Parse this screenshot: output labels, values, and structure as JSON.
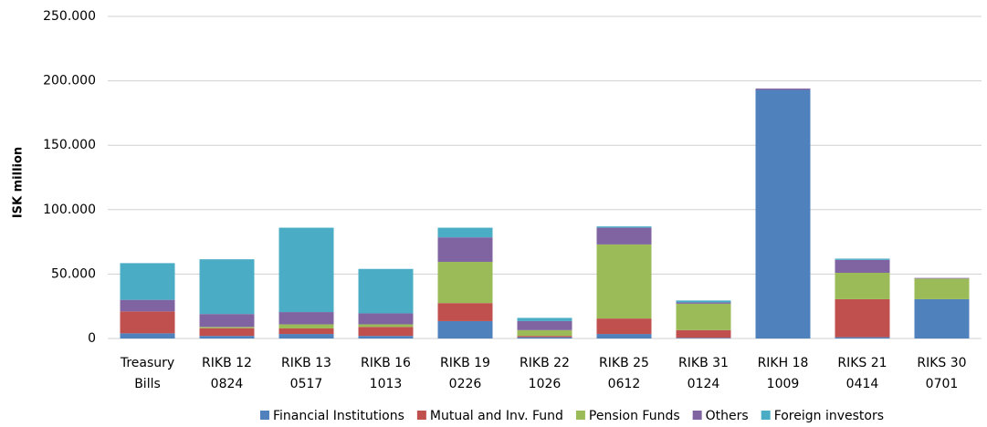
{
  "chart_data": {
    "type": "stacked_bar",
    "y_label": "ISK million",
    "categories": [
      [
        "Treasury",
        "Bills"
      ],
      [
        "RIKB 12",
        "0824"
      ],
      [
        "RIKB 13",
        "0517"
      ],
      [
        "RIKB 16",
        "1013"
      ],
      [
        "RIKB 19",
        "0226"
      ],
      [
        "RIKB 22",
        "1026"
      ],
      [
        "RIKB 25",
        "0612"
      ],
      [
        "RIKB 31",
        "0124"
      ],
      [
        "RIKH 18",
        "1009"
      ],
      [
        "RIKS 21",
        "0414"
      ],
      [
        "RIKS 30",
        "0701"
      ]
    ],
    "series": [
      {
        "name": "Financial Institutions",
        "color": "#4f81bd",
        "values": [
          4000,
          2000,
          3500,
          2000,
          13500,
          1000,
          3500,
          500,
          193000,
          1000,
          30500
        ]
      },
      {
        "name": "Mutual and Inv. Fund",
        "color": "#c0504d",
        "values": [
          17000,
          6000,
          4300,
          7000,
          14000,
          1000,
          12000,
          6000,
          0,
          29500,
          0
        ]
      },
      {
        "name": "Pension Funds",
        "color": "#9bbb59",
        "values": [
          0,
          1000,
          3200,
          2000,
          32000,
          4500,
          57500,
          20500,
          0,
          20500,
          16000
        ]
      },
      {
        "name": "Others",
        "color": "#8064a2",
        "values": [
          9000,
          10000,
          9500,
          8500,
          19000,
          7000,
          13000,
          1000,
          1000,
          10000,
          500
        ]
      },
      {
        "name": "Foreign investors",
        "color": "#4bacc6",
        "values": [
          28500,
          42500,
          65500,
          34500,
          7500,
          2500,
          1000,
          1500,
          0,
          1000,
          0
        ]
      }
    ],
    "ylim": [
      0,
      250000
    ],
    "yticks": [
      0,
      {
        "value": 50000,
        "label": "50.000"
      },
      {
        "value": 100000,
        "label": "100.000"
      },
      {
        "value": 150000,
        "label": "150.000"
      },
      {
        "value": 200000,
        "label": "200.000"
      },
      {
        "value": 250000,
        "label": "250.000"
      }
    ],
    "grid": true,
    "legend": "bottom"
  }
}
